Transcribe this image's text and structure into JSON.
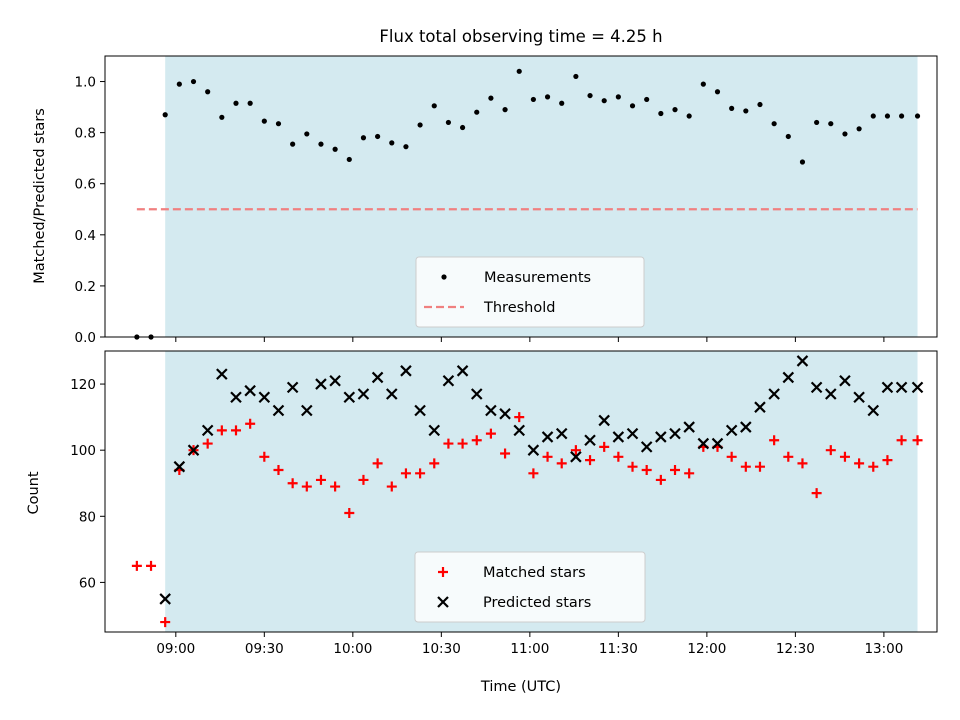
{
  "title": "Flux total observing time = 4.25 h",
  "xlabel": "Time (UTC)",
  "x_tick_labels": [
    "09:00",
    "09:30",
    "10:00",
    "10:30",
    "11:00",
    "11:30",
    "12:00",
    "12:30",
    "13:00"
  ],
  "colors": {
    "observing_band": "#d4eaf0",
    "measurements": "#000000",
    "threshold": "#f08080",
    "matched": "#ff0000",
    "predicted": "#000000"
  },
  "chart_data": [
    {
      "type": "scatter",
      "panel": "top",
      "ylabel": "Matched/Predicted stars",
      "ylim": [
        0,
        1.1
      ],
      "y_ticks": [
        0.0,
        0.2,
        0.4,
        0.6,
        0.8,
        1.0
      ],
      "y_tick_labels": [
        "0.0",
        "0.2",
        "0.4",
        "0.6",
        "0.8",
        "1.0"
      ],
      "xlim_hours": [
        8.6,
        13.3
      ],
      "x_axis": "time of day (UTC), decimal hours",
      "shaded_interval_hours": [
        8.94,
        13.19
      ],
      "legend_position": "lower center",
      "legend": [
        "Measurements",
        "Threshold"
      ],
      "series": [
        {
          "name": "Measurements",
          "marker": "dot",
          "x": [
            8.78,
            8.86,
            8.94,
            9.02,
            9.1,
            9.18,
            9.26,
            9.34,
            9.42,
            9.5,
            9.58,
            9.66,
            9.74,
            9.82,
            9.9,
            9.98,
            10.06,
            10.14,
            10.22,
            10.3,
            10.38,
            10.46,
            10.54,
            10.62,
            10.7,
            10.78,
            10.86,
            10.94,
            11.02,
            11.1,
            11.18,
            11.26,
            11.34,
            11.42,
            11.5,
            11.58,
            11.66,
            11.74,
            11.82,
            11.9,
            11.98,
            12.06,
            12.14,
            12.22,
            12.3,
            12.38,
            12.46,
            12.54,
            12.62,
            12.7,
            12.78,
            12.86,
            12.94,
            13.02,
            13.1,
            13.19
          ],
          "y": [
            0.0,
            0.0,
            0.87,
            0.99,
            1.0,
            0.96,
            0.86,
            0.915,
            0.915,
            0.845,
            0.835,
            0.755,
            0.795,
            0.755,
            0.735,
            0.695,
            0.78,
            0.785,
            0.76,
            0.745,
            0.83,
            0.905,
            0.84,
            0.82,
            0.88,
            0.935,
            0.89,
            1.04,
            0.93,
            0.94,
            0.915,
            1.02,
            0.945,
            0.925,
            0.94,
            0.905,
            0.93,
            0.875,
            0.89,
            0.865,
            0.99,
            0.96,
            0.895,
            0.885,
            0.91,
            0.835,
            0.785,
            0.685,
            0.84,
            0.835,
            0.795,
            0.815,
            0.865,
            0.865,
            0.865,
            0.865
          ]
        },
        {
          "name": "Threshold",
          "style": "dashed",
          "x": [
            8.78,
            13.19
          ],
          "y": [
            0.5,
            0.5
          ]
        }
      ]
    },
    {
      "type": "scatter",
      "panel": "bottom",
      "ylabel": "Count",
      "ylim": [
        45,
        130
      ],
      "y_ticks": [
        60,
        80,
        100,
        120
      ],
      "y_tick_labels": [
        "60",
        "80",
        "100",
        "120"
      ],
      "xlim_hours": [
        8.6,
        13.3
      ],
      "x_axis": "time of day (UTC), decimal hours",
      "shaded_interval_hours": [
        8.94,
        13.19
      ],
      "legend_position": "lower center",
      "legend": [
        "Matched stars",
        "Predicted stars"
      ],
      "series": [
        {
          "name": "Matched stars",
          "marker": "plus",
          "x": [
            8.78,
            8.86,
            8.94,
            9.02,
            9.1,
            9.18,
            9.26,
            9.34,
            9.42,
            9.5,
            9.58,
            9.66,
            9.74,
            9.82,
            9.9,
            9.98,
            10.06,
            10.14,
            10.22,
            10.3,
            10.38,
            10.46,
            10.54,
            10.62,
            10.7,
            10.78,
            10.86,
            10.94,
            11.02,
            11.1,
            11.18,
            11.26,
            11.34,
            11.42,
            11.5,
            11.58,
            11.66,
            11.74,
            11.82,
            11.9,
            11.98,
            12.06,
            12.14,
            12.22,
            12.3,
            12.38,
            12.46,
            12.54,
            12.62,
            12.7,
            12.78,
            12.86,
            12.94,
            13.02,
            13.1,
            13.19
          ],
          "y": [
            65,
            65,
            48,
            94,
            100,
            102,
            106,
            106,
            108,
            98,
            94,
            90,
            89,
            91,
            89,
            81,
            91,
            96,
            89,
            93,
            93,
            96,
            102,
            102,
            103,
            105,
            99,
            110,
            93,
            98,
            96,
            100,
            97,
            101,
            98,
            95,
            94,
            91,
            94,
            93,
            101,
            101,
            98,
            95,
            95,
            103,
            98,
            96,
            87,
            100,
            98,
            96,
            95,
            97,
            103,
            103
          ]
        },
        {
          "name": "Predicted stars",
          "marker": "x",
          "x": [
            8.94,
            9.02,
            9.1,
            9.18,
            9.26,
            9.34,
            9.42,
            9.5,
            9.58,
            9.66,
            9.74,
            9.82,
            9.9,
            9.98,
            10.06,
            10.14,
            10.22,
            10.3,
            10.38,
            10.46,
            10.54,
            10.62,
            10.7,
            10.78,
            10.86,
            10.94,
            11.02,
            11.1,
            11.18,
            11.26,
            11.34,
            11.42,
            11.5,
            11.58,
            11.66,
            11.74,
            11.82,
            11.9,
            11.98,
            12.06,
            12.14,
            12.22,
            12.3,
            12.38,
            12.46,
            12.54,
            12.62,
            12.7,
            12.78,
            12.86,
            12.94,
            13.02,
            13.1,
            13.19
          ],
          "y": [
            55,
            95,
            100,
            106,
            123,
            116,
            118,
            116,
            112,
            119,
            112,
            120,
            121,
            116,
            117,
            122,
            117,
            124,
            112,
            106,
            121,
            124,
            117,
            112,
            111,
            106,
            100,
            104,
            105,
            98,
            103,
            109,
            104,
            105,
            101,
            104,
            105,
            107,
            102,
            102,
            106,
            107,
            113,
            117,
            122,
            127,
            119,
            117,
            121,
            116,
            112,
            119,
            119,
            119
          ]
        }
      ]
    }
  ]
}
